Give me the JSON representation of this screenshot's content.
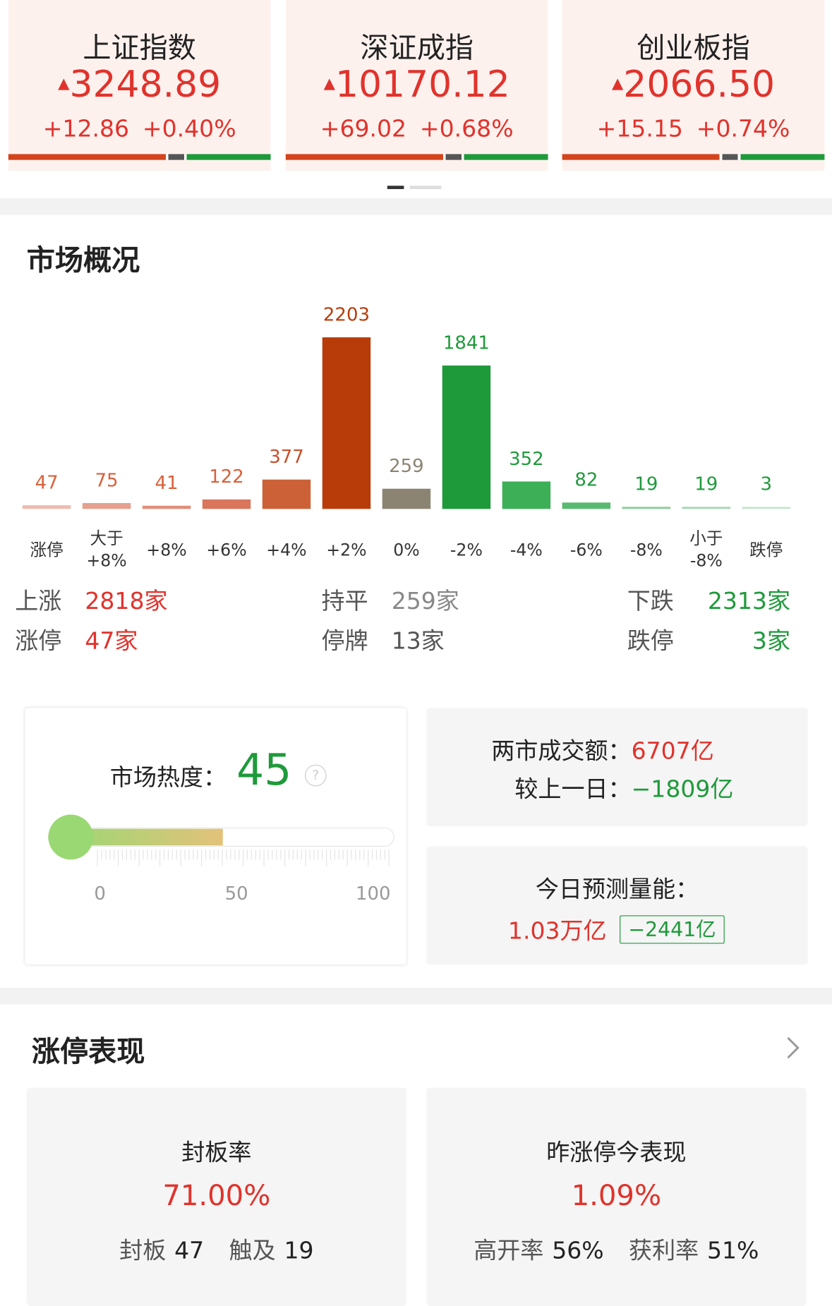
{
  "indices": [
    {
      "name": "上证指数",
      "value": "3248.89",
      "change": "+12.86",
      "pct": "+0.40%"
    },
    {
      "name": "深证成指",
      "value": "10170.12",
      "change": "+69.02",
      "pct": "+0.68%"
    },
    {
      "name": "创业板指",
      "value": "2066.50",
      "change": "+15.15",
      "pct": "+0.74%"
    }
  ],
  "overview_title": "市场概况",
  "chart_data": {
    "type": "bar",
    "categories": [
      "涨停",
      "大于 +8%",
      "+8%",
      "+6%",
      "+4%",
      "+2%",
      "0%",
      "-2%",
      "-4%",
      "-6%",
      "-8%",
      "小于 -8%",
      "跌停"
    ],
    "values": [
      47,
      75,
      41,
      122,
      377,
      2203,
      259,
      1841,
      352,
      82,
      19,
      19,
      3
    ],
    "colors": [
      "#ecbcb0",
      "#e6a08e",
      "#e08e7a",
      "#d9765b",
      "#cc6138",
      "#b83c0a",
      "#8c8472",
      "#1f9a3b",
      "#3daf57",
      "#58ba71",
      "#8ccb9b",
      "#a8d7b2",
      "#c8e5cd"
    ],
    "label_colors": [
      "#d9603a",
      "#d9603a",
      "#d9603a",
      "#d9603a",
      "#c8502a",
      "#b83c0a",
      "#8c8472",
      "#1f9a3b",
      "#1f9a3b",
      "#1f9a3b",
      "#1f9a3b",
      "#1f9a3b",
      "#1f9a3b"
    ]
  },
  "stats": [
    [
      "上涨",
      "2818家"
    ],
    [
      "持平",
      "259家"
    ],
    [
      "下跌",
      "2313家"
    ],
    [
      "涨停",
      "47家"
    ],
    [
      "停牌",
      "13家"
    ],
    [
      "跌停",
      "3家"
    ]
  ],
  "heat": {
    "label": "市场热度：",
    "value": 45,
    "ticks": [
      0,
      50,
      100
    ]
  },
  "turnover": {
    "label": "两市成交额：",
    "value": "6707亿",
    "compare_label": "较上一日：",
    "compare": "−1809亿"
  },
  "forecast": {
    "label": "今日预测量能：",
    "value": "1.03万亿",
    "change": "−2441亿"
  },
  "limit_title": "涨停表现",
  "limit_cards": [
    {
      "title": "封板率",
      "value": "71.00%",
      "items": [
        [
          "封板",
          "47"
        ],
        [
          "触及",
          "19"
        ]
      ]
    },
    {
      "title": "昨涨停今表现",
      "value": "1.09%",
      "items": [
        [
          "高开率",
          "56%"
        ],
        [
          "获利率",
          "51%"
        ]
      ]
    }
  ]
}
